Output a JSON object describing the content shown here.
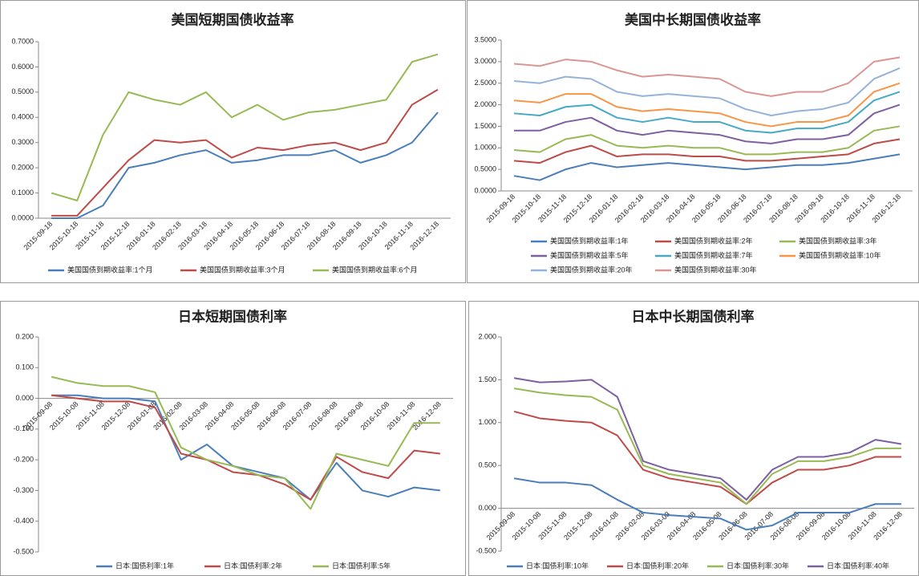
{
  "chart_data": [
    {
      "type": "line",
      "title": "美国短期国债收益率",
      "categories": [
        "2015-09-18",
        "2015-10-18",
        "2015-11-18",
        "2015-12-18",
        "2016-01-18",
        "2016-02-18",
        "2016-03-18",
        "2016-04-18",
        "2016-05-18",
        "2016-06-18",
        "2016-07-18",
        "2016-08-18",
        "2016-09-18",
        "2016-10-18",
        "2016-11-18",
        "2016-12-18"
      ],
      "ylim": [
        0,
        0.7
      ],
      "yticks": [
        {
          "value": 0,
          "label": "0.0000"
        },
        {
          "value": 0.1,
          "label": "0.1000"
        },
        {
          "value": 0.2,
          "label": "0.2000"
        },
        {
          "value": 0.3,
          "label": "0.3000"
        },
        {
          "value": 0.4,
          "label": "0.4000"
        },
        {
          "value": 0.5,
          "label": "0.5000"
        },
        {
          "value": 0.6,
          "label": "0.6000"
        },
        {
          "value": 0.7,
          "label": "0.7000"
        }
      ],
      "series": [
        {
          "name": "美国国债到期收益率:1个月",
          "color": "#4a7ebb",
          "values": [
            0.0,
            0.0,
            0.05,
            0.2,
            0.22,
            0.25,
            0.27,
            0.22,
            0.23,
            0.25,
            0.25,
            0.27,
            0.22,
            0.25,
            0.3,
            0.42
          ]
        },
        {
          "name": "美国国债到期收益率:3个月",
          "color": "#be4b48",
          "values": [
            0.01,
            0.01,
            0.12,
            0.23,
            0.31,
            0.3,
            0.31,
            0.24,
            0.28,
            0.27,
            0.29,
            0.3,
            0.27,
            0.3,
            0.45,
            0.51
          ]
        },
        {
          "name": "美国国债到期收益率:6个月",
          "color": "#98b954",
          "values": [
            0.1,
            0.07,
            0.33,
            0.5,
            0.47,
            0.45,
            0.5,
            0.4,
            0.45,
            0.39,
            0.42,
            0.43,
            0.45,
            0.47,
            0.62,
            0.65
          ]
        }
      ]
    },
    {
      "type": "line",
      "title": "美国中长期国债收益率",
      "categories": [
        "2015-09-18",
        "2015-10-18",
        "2015-11-18",
        "2015-12-18",
        "2016-01-18",
        "2016-02-18",
        "2016-03-18",
        "2016-04-18",
        "2016-05-18",
        "2016-06-18",
        "2016-07-18",
        "2016-08-18",
        "2016-09-18",
        "2016-10-18",
        "2016-11-18",
        "2016-12-18"
      ],
      "ylim": [
        0,
        3.5
      ],
      "yticks": [
        {
          "value": 0,
          "label": "0.0000"
        },
        {
          "value": 0.5,
          "label": "0.5000"
        },
        {
          "value": 1,
          "label": "1.0000"
        },
        {
          "value": 1.5,
          "label": "1.5000"
        },
        {
          "value": 2,
          "label": "2.0000"
        },
        {
          "value": 2.5,
          "label": "2.5000"
        },
        {
          "value": 3,
          "label": "3.0000"
        },
        {
          "value": 3.5,
          "label": "3.5000"
        }
      ],
      "series": [
        {
          "name": "美国国债到期收益率:1年",
          "color": "#4a7ebb",
          "values": [
            0.35,
            0.25,
            0.5,
            0.65,
            0.55,
            0.6,
            0.65,
            0.6,
            0.55,
            0.5,
            0.55,
            0.6,
            0.6,
            0.65,
            0.75,
            0.85
          ]
        },
        {
          "name": "美国国债到期收益率:2年",
          "color": "#be4b48",
          "values": [
            0.7,
            0.65,
            0.9,
            1.05,
            0.8,
            0.85,
            0.85,
            0.8,
            0.8,
            0.7,
            0.7,
            0.75,
            0.8,
            0.85,
            1.1,
            1.2
          ]
        },
        {
          "name": "美国国债到期收益率:3年",
          "color": "#98b954",
          "values": [
            0.95,
            0.9,
            1.2,
            1.3,
            1.05,
            1.0,
            1.05,
            1.0,
            1.0,
            0.85,
            0.85,
            0.9,
            0.9,
            1.0,
            1.4,
            1.5
          ]
        },
        {
          "name": "美国国债到期收益率:5年",
          "color": "#7d60a0",
          "values": [
            1.4,
            1.4,
            1.6,
            1.7,
            1.4,
            1.3,
            1.4,
            1.35,
            1.3,
            1.15,
            1.1,
            1.2,
            1.2,
            1.3,
            1.8,
            2.0
          ]
        },
        {
          "name": "美国国债到期收益率:7年",
          "color": "#46aac5",
          "values": [
            1.8,
            1.75,
            1.95,
            2.0,
            1.7,
            1.6,
            1.7,
            1.6,
            1.6,
            1.4,
            1.35,
            1.45,
            1.45,
            1.6,
            2.1,
            2.3
          ]
        },
        {
          "name": "美国国债到期收益率:10年",
          "color": "#f79646",
          "values": [
            2.1,
            2.05,
            2.25,
            2.25,
            1.95,
            1.85,
            1.9,
            1.85,
            1.8,
            1.6,
            1.5,
            1.6,
            1.6,
            1.75,
            2.3,
            2.5
          ]
        },
        {
          "name": "美国国债到期收益率:20年",
          "color": "#95b3d7",
          "values": [
            2.55,
            2.5,
            2.65,
            2.6,
            2.3,
            2.2,
            2.25,
            2.2,
            2.15,
            1.9,
            1.75,
            1.85,
            1.9,
            2.05,
            2.6,
            2.85
          ]
        },
        {
          "name": "美国国债到期收益率:30年",
          "color": "#d99694",
          "values": [
            2.95,
            2.9,
            3.05,
            3.0,
            2.8,
            2.65,
            2.7,
            2.65,
            2.6,
            2.3,
            2.2,
            2.3,
            2.3,
            2.5,
            3.0,
            3.1
          ]
        }
      ]
    },
    {
      "type": "line",
      "title": "日本短期国债利率",
      "categories": [
        "2015-09-08",
        "2015-10-08",
        "2015-11-08",
        "2015-12-08",
        "2016-01-08",
        "2016-02-08",
        "2016-03-08",
        "2016-04-08",
        "2016-05-08",
        "2016-06-08",
        "2016-07-08",
        "2016-08-08",
        "2016-09-08",
        "2016-10-08",
        "2016-11-08",
        "2016-12-08"
      ],
      "ylim": [
        -0.5,
        0.2
      ],
      "yticks": [
        {
          "value": -0.5,
          "label": "-0.500"
        },
        {
          "value": -0.4,
          "label": "-0.400"
        },
        {
          "value": -0.3,
          "label": "-0.300"
        },
        {
          "value": -0.2,
          "label": "-0.200"
        },
        {
          "value": -0.1,
          "label": "-0.100"
        },
        {
          "value": 0,
          "label": "0.000"
        },
        {
          "value": 0.1,
          "label": "0.100"
        },
        {
          "value": 0.2,
          "label": "0.200"
        }
      ],
      "series": [
        {
          "name": "日本:国债利率:1年",
          "color": "#4a7ebb",
          "values": [
            0.01,
            0.01,
            0.0,
            0.0,
            -0.01,
            -0.2,
            -0.15,
            -0.22,
            -0.24,
            -0.26,
            -0.33,
            -0.21,
            -0.3,
            -0.32,
            -0.29,
            -0.3
          ]
        },
        {
          "name": "日本:国债利率:2年",
          "color": "#be4b48",
          "values": [
            0.01,
            0.0,
            -0.01,
            -0.01,
            -0.03,
            -0.18,
            -0.2,
            -0.24,
            -0.25,
            -0.28,
            -0.33,
            -0.19,
            -0.24,
            -0.26,
            -0.17,
            -0.18
          ]
        },
        {
          "name": "日本:国债利率:5年",
          "color": "#98b954",
          "values": [
            0.07,
            0.05,
            0.04,
            0.04,
            0.02,
            -0.16,
            -0.2,
            -0.22,
            -0.25,
            -0.26,
            -0.36,
            -0.18,
            -0.2,
            -0.22,
            -0.08,
            -0.08
          ]
        }
      ]
    },
    {
      "type": "line",
      "title": "日本中长期国债利率",
      "categories": [
        "2015-09-08",
        "2015-10-08",
        "2015-11-08",
        "2015-12-08",
        "2016-01-08",
        "2016-02-08",
        "2016-03-08",
        "2016-04-08",
        "2016-05-08",
        "2016-06-08",
        "2016-07-08",
        "2016-08-08",
        "2016-09-08",
        "2016-10-08",
        "2016-11-08",
        "2016-12-08"
      ],
      "ylim": [
        -0.5,
        2.0
      ],
      "yticks": [
        {
          "value": -0.5,
          "label": "-0.500"
        },
        {
          "value": 0,
          "label": "0.000"
        },
        {
          "value": 0.5,
          "label": "0.500"
        },
        {
          "value": 1,
          "label": "1.000"
        },
        {
          "value": 1.5,
          "label": "1.500"
        },
        {
          "value": 2,
          "label": "2.000"
        }
      ],
      "series": [
        {
          "name": "日本:国债利率:10年",
          "color": "#4a7ebb",
          "values": [
            0.35,
            0.3,
            0.3,
            0.27,
            0.1,
            -0.05,
            -0.08,
            -0.1,
            -0.12,
            -0.25,
            -0.2,
            -0.05,
            -0.05,
            -0.05,
            0.05,
            0.05
          ]
        },
        {
          "name": "日本:国债利率:20年",
          "color": "#be4b48",
          "values": [
            1.13,
            1.05,
            1.02,
            1.0,
            0.85,
            0.45,
            0.35,
            0.3,
            0.25,
            0.05,
            0.3,
            0.45,
            0.45,
            0.5,
            0.6,
            0.6
          ]
        },
        {
          "name": "日本:国债利率:30年",
          "color": "#98b954",
          "values": [
            1.4,
            1.35,
            1.32,
            1.3,
            1.15,
            0.5,
            0.4,
            0.35,
            0.3,
            0.05,
            0.4,
            0.55,
            0.55,
            0.6,
            0.7,
            0.7
          ]
        },
        {
          "name": "日本:国债利率:40年",
          "color": "#7d60a0",
          "values": [
            1.52,
            1.47,
            1.48,
            1.5,
            1.3,
            0.55,
            0.45,
            0.4,
            0.35,
            0.1,
            0.45,
            0.6,
            0.6,
            0.65,
            0.8,
            0.75
          ]
        }
      ]
    }
  ]
}
